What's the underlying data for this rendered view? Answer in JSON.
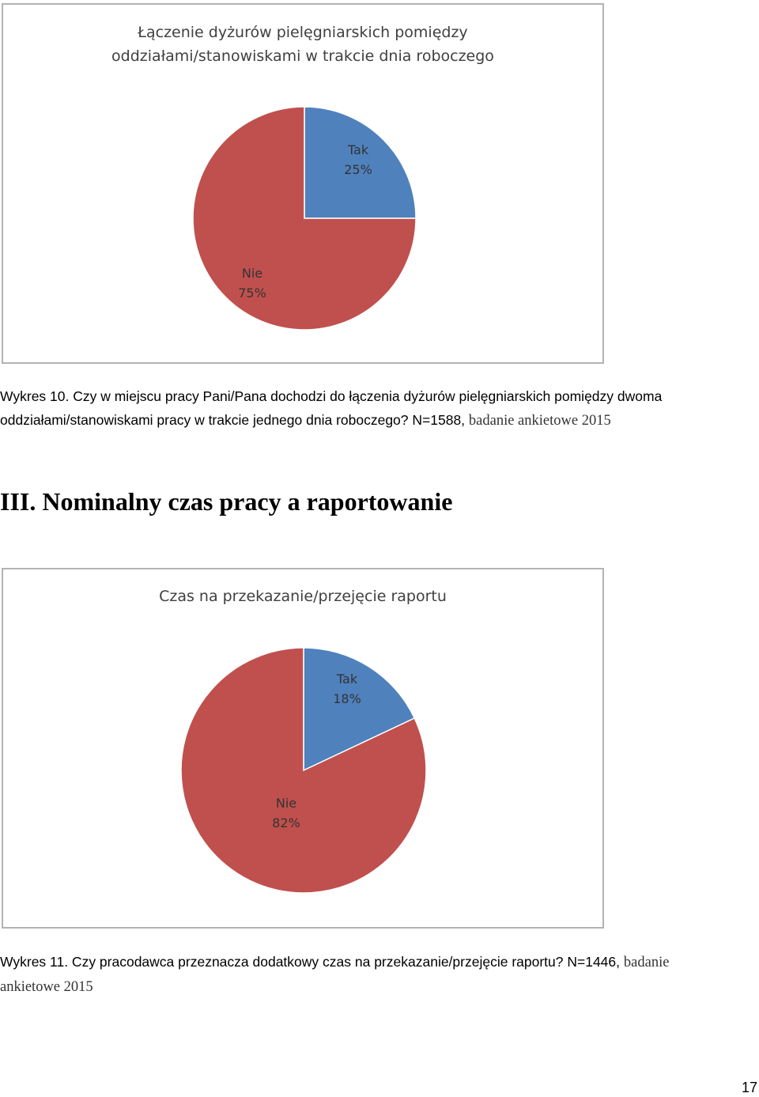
{
  "chart_data": [
    {
      "type": "pie",
      "title": "Łączenie dyżurów pielęgniarskich pomiędzy oddziałami/stanowiskami w trakcie dnia roboczego",
      "title_lines": [
        "Łączenie dyżurów pielęgniarskich pomiędzy",
        "oddziałami/stanowiskami w trakcie dnia roboczego"
      ],
      "slices": [
        {
          "label": "Tak",
          "value": 25,
          "value_label": "25%",
          "color": "#4f81bd"
        },
        {
          "label": "Nie",
          "value": 75,
          "value_label": "75%",
          "color": "#c0504d"
        }
      ]
    },
    {
      "type": "pie",
      "title": "Czas na przekazanie/przejęcie raportu",
      "title_lines": [
        "Czas na przekazanie/przejęcie raportu"
      ],
      "slices": [
        {
          "label": "Tak",
          "value": 18,
          "value_label": "18%",
          "color": "#4f81bd"
        },
        {
          "label": "Nie",
          "value": 82,
          "value_label": "82%",
          "color": "#c0504d"
        }
      ]
    }
  ],
  "captions": {
    "wykres10": {
      "line1": "Wykres 10. Czy w miejscu pracy Pani/Pana dochodzi do łączenia dyżurów pielęgniarskich pomiędzy dwoma",
      "line2_main": "oddziałami/stanowiskami pracy w trakcie jednego dnia roboczego? N=1588, ",
      "line2_serif": "badanie ankietowe 2015"
    },
    "wykres11": {
      "line1_main": "Wykres 11. Czy pracodawca przeznacza dodatkowy czas na przekazanie/przejęcie raportu? N=1446, ",
      "line1_serif": "badanie",
      "line2_serif": "ankietowe 2015"
    }
  },
  "section_heading": "III. Nominalny czas pracy a raportowanie",
  "page_number": "17"
}
